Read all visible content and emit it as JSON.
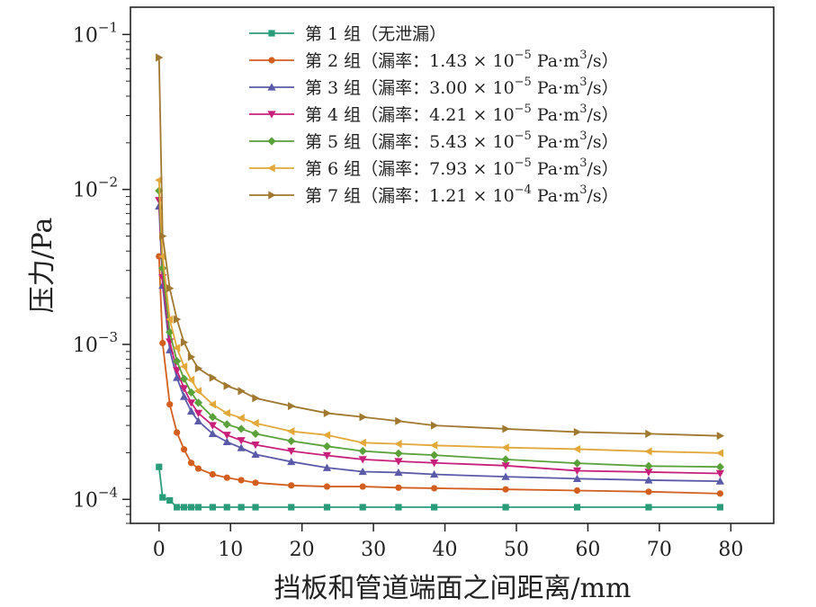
{
  "chart_data": {
    "type": "line",
    "title": "",
    "xlabel": "挡板和管道端面之间距离/mm",
    "ylabel": "压力/Pa",
    "xlim": [
      -4,
      86
    ],
    "ylim": [
      7e-05,
      0.15
    ],
    "yscale": "log",
    "xticks": [
      0,
      10,
      20,
      30,
      40,
      50,
      60,
      70,
      80
    ],
    "xtick_labels": [
      "0",
      "10",
      "20",
      "30",
      "40",
      "50",
      "60",
      "70",
      "80"
    ],
    "yticks": [
      0.0001,
      0.001,
      0.01,
      0.1
    ],
    "ytick_labels": [
      {
        "base": "10",
        "exp": "−4"
      },
      {
        "base": "10",
        "exp": "−3"
      },
      {
        "base": "10",
        "exp": "−2"
      },
      {
        "base": "10",
        "exp": "−1"
      }
    ],
    "grid": false,
    "legend_position": "top-right",
    "series": [
      {
        "name": "第 1 组（无泄漏）",
        "legend_parts": {
          "prefix": "第 1 组（无泄漏）",
          "mantissa": "",
          "exp": ""
        },
        "color": "#2a9c7a",
        "marker": "square",
        "x": [
          0,
          0.5,
          1.5,
          2.5,
          3.5,
          4.5,
          5.5,
          7.5,
          9.5,
          11.5,
          13.5,
          18.5,
          23.5,
          28.5,
          33.5,
          38.5,
          48.5,
          58.5,
          68.5,
          78.5
        ],
        "values": [
          0.000162,
          0.000103,
          9.85e-05,
          8.9e-05,
          8.9e-05,
          8.9e-05,
          8.9e-05,
          8.9e-05,
          8.9e-05,
          8.9e-05,
          8.9e-05,
          8.9e-05,
          8.9e-05,
          8.9e-05,
          8.9e-05,
          8.9e-05,
          8.9e-05,
          8.9e-05,
          8.9e-05,
          8.9e-05
        ]
      },
      {
        "name": "第 2 组（漏率：1.43 × 10−5 Pa·m3/s）",
        "legend_parts": {
          "prefix": "第 2 组（漏率：",
          "mantissa": "1.43 × 10",
          "exp": "−5"
        },
        "color": "#d35f1f",
        "marker": "circle",
        "x": [
          0,
          0.5,
          1.5,
          2.5,
          3.5,
          4.5,
          5.5,
          7.5,
          9.5,
          11.5,
          13.5,
          18.5,
          23.5,
          28.5,
          33.5,
          38.5,
          48.5,
          58.5,
          68.5,
          78.5
        ],
        "values": [
          0.0037,
          0.00102,
          0.00041,
          0.00027,
          0.00021,
          0.000172,
          0.000158,
          0.000145,
          0.000138,
          0.000133,
          0.000128,
          0.000123,
          0.000121,
          0.000121,
          0.000119,
          0.000118,
          0.000116,
          0.000114,
          0.000112,
          0.000109
        ]
      },
      {
        "name": "第 3 组（漏率：3.00 × 10−5 Pa·m3/s）",
        "legend_parts": {
          "prefix": "第 3 组（漏率：",
          "mantissa": "3.00 × 10",
          "exp": "−5"
        },
        "color": "#5b5aa8",
        "marker": "triangle-up",
        "x": [
          0,
          0.5,
          1.5,
          2.5,
          3.5,
          4.5,
          5.5,
          7.5,
          9.5,
          11.5,
          13.5,
          18.5,
          23.5,
          28.5,
          33.5,
          38.5,
          48.5,
          58.5,
          68.5,
          78.5
        ],
        "values": [
          0.0078,
          0.0024,
          0.00092,
          0.00061,
          0.00046,
          0.00037,
          0.00032,
          0.000265,
          0.000235,
          0.000215,
          0.000195,
          0.000175,
          0.00016,
          0.000151,
          0.000149,
          0.000145,
          0.00014,
          0.000136,
          0.000133,
          0.000131
        ]
      },
      {
        "name": "第 4 组（漏率：4.21 × 10−5 Pa·m3/s）",
        "legend_parts": {
          "prefix": "第 4 组（漏率：",
          "mantissa": "4.21 × 10",
          "exp": "−5"
        },
        "color": "#c8207a",
        "marker": "triangle-down",
        "x": [
          0,
          0.5,
          1.5,
          2.5,
          3.5,
          4.5,
          5.5,
          7.5,
          9.5,
          11.5,
          13.5,
          18.5,
          23.5,
          28.5,
          33.5,
          38.5,
          48.5,
          58.5,
          68.5,
          78.5
        ],
        "values": [
          0.0085,
          0.0027,
          0.00104,
          0.00068,
          0.00052,
          0.00042,
          0.00036,
          0.0003,
          0.00026,
          0.00024,
          0.000225,
          0.000205,
          0.000192,
          0.000181,
          0.000176,
          0.000172,
          0.000165,
          0.000153,
          0.00015,
          0.000147
        ]
      },
      {
        "name": "第 5 组（漏率：5.43 × 10−5 Pa·m3/s）",
        "legend_parts": {
          "prefix": "第 5 组（漏率：",
          "mantissa": "5.43 × 10",
          "exp": "−5"
        },
        "color": "#5aa13a",
        "marker": "diamond",
        "x": [
          0,
          0.5,
          1.5,
          2.5,
          3.5,
          4.5,
          5.5,
          7.5,
          9.5,
          11.5,
          13.5,
          18.5,
          23.5,
          28.5,
          33.5,
          38.5,
          48.5,
          58.5,
          68.5,
          78.5
        ],
        "values": [
          0.0098,
          0.0031,
          0.0012,
          0.00078,
          0.0006,
          0.00049,
          0.00042,
          0.00034,
          0.000305,
          0.000285,
          0.000265,
          0.000238,
          0.00022,
          0.000205,
          0.000198,
          0.000193,
          0.000181,
          0.000171,
          0.000164,
          0.000162
        ]
      },
      {
        "name": "第 6 组（漏率：7.93 × 10−5 Pa·m3/s）",
        "legend_parts": {
          "prefix": "第 6 组（漏率：",
          "mantissa": "7.93 × 10",
          "exp": "−5"
        },
        "color": "#e2a83a",
        "marker": "triangle-left",
        "x": [
          0,
          0.5,
          1.5,
          2.5,
          3.5,
          4.5,
          5.5,
          7.5,
          9.5,
          11.5,
          13.5,
          18.5,
          23.5,
          28.5,
          33.5,
          38.5,
          48.5,
          58.5,
          68.5,
          78.5
        ],
        "values": [
          0.0115,
          0.0037,
          0.00145,
          0.00095,
          0.00072,
          0.00059,
          0.0005,
          0.00041,
          0.00036,
          0.000335,
          0.00031,
          0.000275,
          0.00026,
          0.000232,
          0.000228,
          0.000223,
          0.000216,
          0.000211,
          0.000204,
          0.000199
        ]
      },
      {
        "name": "第 7 组（漏率：1.21 × 10−4 Pa·m3/s）",
        "legend_parts": {
          "prefix": "第 7 组（漏率：",
          "mantissa": "1.21 × 10",
          "exp": "−4"
        },
        "color": "#a07830",
        "marker": "triangle-right",
        "x": [
          0,
          0.5,
          1.5,
          2.5,
          3.5,
          4.5,
          5.5,
          7.5,
          9.5,
          11.5,
          13.5,
          18.5,
          23.5,
          28.5,
          33.5,
          38.5,
          48.5,
          58.5,
          68.5,
          78.5
        ],
        "values": [
          0.071,
          0.005,
          0.0023,
          0.00145,
          0.00103,
          0.00083,
          0.0007,
          0.00061,
          0.00054,
          0.0005,
          0.00045,
          0.0004,
          0.00036,
          0.00034,
          0.00032,
          0.0003,
          0.000285,
          0.000272,
          0.000265,
          0.000257
        ]
      }
    ],
    "legend_unit": {
      "pa": " Pa·m",
      "unit_exp": "3",
      "tail": "/s）"
    }
  }
}
